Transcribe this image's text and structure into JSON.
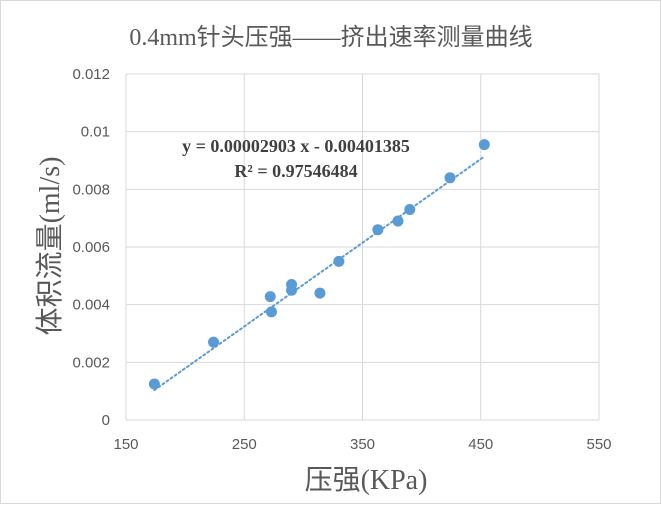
{
  "chart_data": {
    "type": "scatter",
    "title": "0.4mm针头压强——挤出速率测量曲线",
    "xlabel": "压强(KPa)",
    "ylabel": "体积流量(ml/s)",
    "xlim": [
      150,
      550
    ],
    "ylim": [
      0,
      0.012
    ],
    "x_ticks": [
      "150",
      "250",
      "350",
      "450",
      "550"
    ],
    "y_ticks": [
      "0",
      "0.002",
      "0.004",
      "0.006",
      "0.008",
      "0.01",
      "0.012"
    ],
    "grid": "horizontal",
    "legend": "none",
    "series": [
      {
        "points": [
          [
            174,
            0.00125
          ],
          [
            224,
            0.0027
          ],
          [
            272,
            0.00428
          ],
          [
            273,
            0.00375
          ],
          [
            290,
            0.0045
          ],
          [
            290,
            0.0047
          ],
          [
            314,
            0.0044
          ],
          [
            330,
            0.0055
          ],
          [
            363,
            0.0066
          ],
          [
            380,
            0.0069
          ],
          [
            390,
            0.0073
          ],
          [
            424,
            0.0084
          ],
          [
            453,
            0.00955
          ]
        ],
        "color": "#5b9bd5"
      }
    ],
    "trendline": {
      "type": "linear",
      "slope": 2.903e-05,
      "intercept": -0.00401385,
      "x_range": [
        174,
        453
      ],
      "equation": "y = 0.00002903 x - 0.00401385",
      "r_squared": "R² = 0.97546484",
      "color": "#5b9bd5",
      "style": "dotted"
    },
    "colors": {
      "gridline": "#d9d9d9",
      "text": "#595959",
      "equation_text": "#404040"
    }
  }
}
